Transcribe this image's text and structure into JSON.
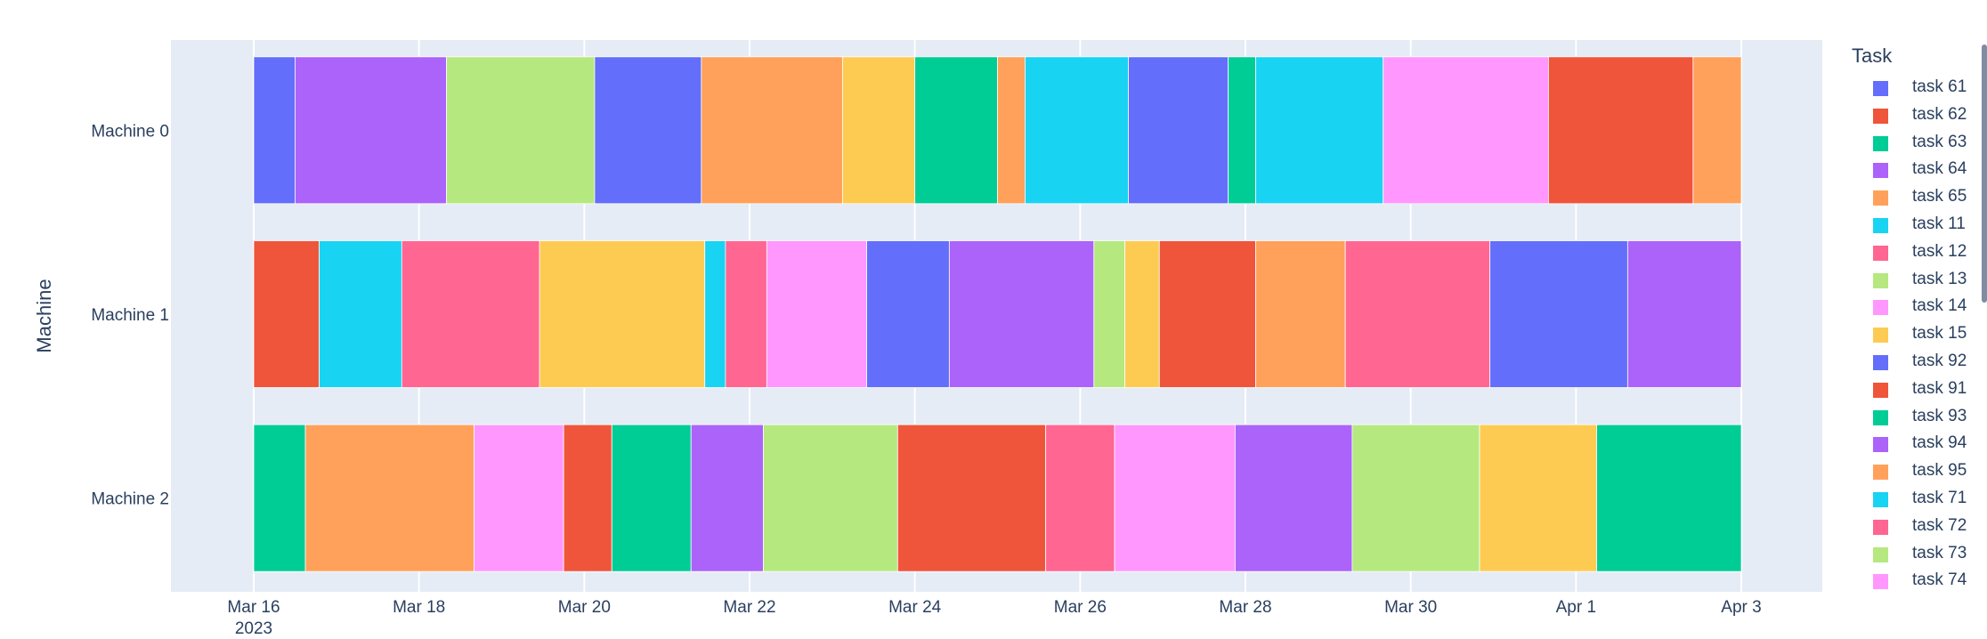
{
  "chart_data": {
    "type": "gantt",
    "ylabel": "Machine",
    "x_ticks": [
      "Mar 16",
      "Mar 18",
      "Mar 20",
      "Mar 22",
      "Mar 24",
      "Mar 26",
      "Mar 28",
      "Mar 30",
      "Apr 1",
      "Apr 3"
    ],
    "x_year_label": "2023",
    "xlim": [
      "2023-03-15",
      "2023-04-03 22:00"
    ],
    "machines": [
      "Machine 0",
      "Machine 1",
      "Machine 2"
    ],
    "legend_title": "Task",
    "legend": [
      {
        "name": "task 61",
        "color": "#636efa"
      },
      {
        "name": "task 62",
        "color": "#EF553B"
      },
      {
        "name": "task 63",
        "color": "#00cc96"
      },
      {
        "name": "task 64",
        "color": "#ab63fa"
      },
      {
        "name": "task 65",
        "color": "#FFA15A"
      },
      {
        "name": "task 11",
        "color": "#19d3f3"
      },
      {
        "name": "task 12",
        "color": "#FF6692"
      },
      {
        "name": "task 13",
        "color": "#B6E880"
      },
      {
        "name": "task 14",
        "color": "#FF97FF"
      },
      {
        "name": "task 15",
        "color": "#FECB52"
      },
      {
        "name": "task 92",
        "color": "#636efa"
      },
      {
        "name": "task 91",
        "color": "#EF553B"
      },
      {
        "name": "task 93",
        "color": "#00cc96"
      },
      {
        "name": "task 94",
        "color": "#ab63fa"
      },
      {
        "name": "task 95",
        "color": "#FFA15A"
      },
      {
        "name": "task 71",
        "color": "#19d3f3"
      },
      {
        "name": "task 72",
        "color": "#FF6692"
      },
      {
        "name": "task 73",
        "color": "#B6E880"
      },
      {
        "name": "task 74",
        "color": "#FF97FF"
      }
    ],
    "bars": [
      {
        "machine": "Machine 0",
        "start": "2023-03-16 00:00",
        "end": "2023-03-16 12:00",
        "color": "#636efa"
      },
      {
        "machine": "Machine 0",
        "start": "2023-03-16 12:00",
        "end": "2023-03-18 08:00",
        "color": "#ab63fa"
      },
      {
        "machine": "Machine 0",
        "start": "2023-03-18 08:00",
        "end": "2023-03-20 03:00",
        "color": "#B6E880"
      },
      {
        "machine": "Machine 0",
        "start": "2023-03-20 03:00",
        "end": "2023-03-21 10:00",
        "color": "#636efa"
      },
      {
        "machine": "Machine 0",
        "start": "2023-03-21 10:00",
        "end": "2023-03-23 03:00",
        "color": "#FFA15A"
      },
      {
        "machine": "Machine 0",
        "start": "2023-03-23 03:00",
        "end": "2023-03-24 00:00",
        "color": "#FECB52"
      },
      {
        "machine": "Machine 0",
        "start": "2023-03-24 00:00",
        "end": "2023-03-25 00:00",
        "color": "#00cc96"
      },
      {
        "machine": "Machine 0",
        "start": "2023-03-25 00:00",
        "end": "2023-03-25 08:00",
        "color": "#FFA15A"
      },
      {
        "machine": "Machine 0",
        "start": "2023-03-25 08:00",
        "end": "2023-03-26 14:00",
        "color": "#19d3f3"
      },
      {
        "machine": "Machine 0",
        "start": "2023-03-26 14:00",
        "end": "2023-03-27 19:00",
        "color": "#636efa"
      },
      {
        "machine": "Machine 0",
        "start": "2023-03-27 19:00",
        "end": "2023-03-28 03:00",
        "color": "#00cc96"
      },
      {
        "machine": "Machine 0",
        "start": "2023-03-28 03:00",
        "end": "2023-03-29 16:00",
        "color": "#19d3f3"
      },
      {
        "machine": "Machine 0",
        "start": "2023-03-29 16:00",
        "end": "2023-03-31 16:00",
        "color": "#FF97FF"
      },
      {
        "machine": "Machine 0",
        "start": "2023-03-31 16:00",
        "end": "2023-04-02 10:00",
        "color": "#EF553B"
      },
      {
        "machine": "Machine 0",
        "start": "2023-04-02 10:00",
        "end": "2023-04-03 00:00",
        "color": "#FFA15A"
      },
      {
        "machine": "Machine 1",
        "start": "2023-03-16 00:00",
        "end": "2023-03-16 19:00",
        "color": "#EF553B"
      },
      {
        "machine": "Machine 1",
        "start": "2023-03-16 19:00",
        "end": "2023-03-17 19:00",
        "color": "#19d3f3"
      },
      {
        "machine": "Machine 1",
        "start": "2023-03-17 19:00",
        "end": "2023-03-19 11:00",
        "color": "#FF6692"
      },
      {
        "machine": "Machine 1",
        "start": "2023-03-19 11:00",
        "end": "2023-03-21 11:00",
        "color": "#FECB52"
      },
      {
        "machine": "Machine 1",
        "start": "2023-03-21 11:00",
        "end": "2023-03-21 17:00",
        "color": "#19d3f3"
      },
      {
        "machine": "Machine 1",
        "start": "2023-03-21 17:00",
        "end": "2023-03-22 05:00",
        "color": "#FF6692"
      },
      {
        "machine": "Machine 1",
        "start": "2023-03-22 05:00",
        "end": "2023-03-23 10:00",
        "color": "#FF97FF"
      },
      {
        "machine": "Machine 1",
        "start": "2023-03-23 10:00",
        "end": "2023-03-24 10:00",
        "color": "#636efa"
      },
      {
        "machine": "Machine 1",
        "start": "2023-03-24 10:00",
        "end": "2023-03-26 04:00",
        "color": "#ab63fa"
      },
      {
        "machine": "Machine 1",
        "start": "2023-03-26 04:00",
        "end": "2023-03-26 13:00",
        "color": "#B6E880"
      },
      {
        "machine": "Machine 1",
        "start": "2023-03-26 13:00",
        "end": "2023-03-26 23:00",
        "color": "#FECB52"
      },
      {
        "machine": "Machine 1",
        "start": "2023-03-26 23:00",
        "end": "2023-03-28 03:00",
        "color": "#EF553B"
      },
      {
        "machine": "Machine 1",
        "start": "2023-03-28 03:00",
        "end": "2023-03-29 05:00",
        "color": "#FFA15A"
      },
      {
        "machine": "Machine 1",
        "start": "2023-03-29 05:00",
        "end": "2023-03-30 23:00",
        "color": "#FF6692"
      },
      {
        "machine": "Machine 1",
        "start": "2023-03-30 23:00",
        "end": "2023-04-01 15:00",
        "color": "#636efa"
      },
      {
        "machine": "Machine 1",
        "start": "2023-04-01 15:00",
        "end": "2023-04-03 00:00",
        "color": "#ab63fa"
      },
      {
        "machine": "Machine 2",
        "start": "2023-03-16 00:00",
        "end": "2023-03-16 15:00",
        "color": "#00cc96"
      },
      {
        "machine": "Machine 2",
        "start": "2023-03-16 15:00",
        "end": "2023-03-18 16:00",
        "color": "#FFA15A"
      },
      {
        "machine": "Machine 2",
        "start": "2023-03-18 16:00",
        "end": "2023-03-19 18:00",
        "color": "#FF97FF"
      },
      {
        "machine": "Machine 2",
        "start": "2023-03-19 18:00",
        "end": "2023-03-20 08:00",
        "color": "#EF553B"
      },
      {
        "machine": "Machine 2",
        "start": "2023-03-20 08:00",
        "end": "2023-03-21 07:00",
        "color": "#00cc96"
      },
      {
        "machine": "Machine 2",
        "start": "2023-03-21 07:00",
        "end": "2023-03-22 04:00",
        "color": "#ab63fa"
      },
      {
        "machine": "Machine 2",
        "start": "2023-03-22 04:00",
        "end": "2023-03-23 19:00",
        "color": "#B6E880"
      },
      {
        "machine": "Machine 2",
        "start": "2023-03-23 19:00",
        "end": "2023-03-25 14:00",
        "color": "#EF553B"
      },
      {
        "machine": "Machine 2",
        "start": "2023-03-25 14:00",
        "end": "2023-03-26 10:00",
        "color": "#FF6692"
      },
      {
        "machine": "Machine 2",
        "start": "2023-03-26 10:00",
        "end": "2023-03-27 21:00",
        "color": "#FF97FF"
      },
      {
        "machine": "Machine 2",
        "start": "2023-03-27 21:00",
        "end": "2023-03-29 07:00",
        "color": "#ab63fa"
      },
      {
        "machine": "Machine 2",
        "start": "2023-03-29 07:00",
        "end": "2023-03-30 20:00",
        "color": "#B6E880"
      },
      {
        "machine": "Machine 2",
        "start": "2023-03-30 20:00",
        "end": "2023-04-01 06:00",
        "color": "#FECB52"
      },
      {
        "machine": "Machine 2",
        "start": "2023-04-01 06:00",
        "end": "2023-04-03 00:00",
        "color": "#00cc96"
      }
    ],
    "grid": true,
    "legend_placement": "right",
    "plot_background": "#e5ecf6"
  }
}
